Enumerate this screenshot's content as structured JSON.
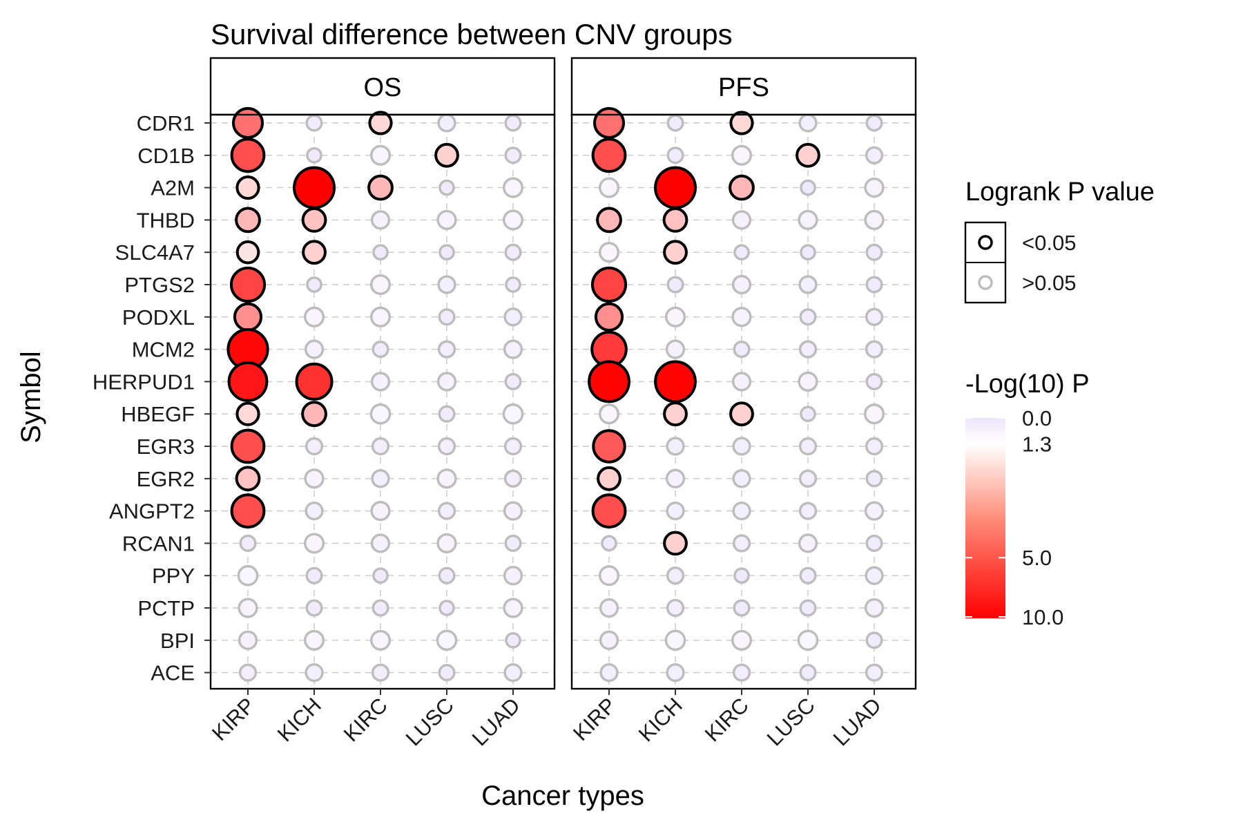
{
  "chart_data": {
    "type": "scatter",
    "title": "Survival difference between CNV groups",
    "xlabel": "Cancer types",
    "ylabel": "Symbol",
    "panels": [
      "OS",
      "PFS"
    ],
    "categories": [
      "KIRP",
      "KICH",
      "KIRC",
      "LUSC",
      "LUAD"
    ],
    "genes": [
      "CDR1",
      "CD1B",
      "A2M",
      "THBD",
      "SLC4A7",
      "PTGS2",
      "PODXL",
      "MCM2",
      "HERPUD1",
      "HBEGF",
      "EGR3",
      "EGR2",
      "ANGPT2",
      "RCAN1",
      "PPY",
      "PCTP",
      "BPI",
      "ACE"
    ],
    "neglog10p": {
      "OS": [
        [
          4.0,
          0.3,
          1.5,
          0.5,
          0.3
        ],
        [
          5.5,
          0.2,
          0.8,
          1.6,
          0.3
        ],
        [
          1.5,
          10.0,
          2.0,
          0.2,
          0.8
        ],
        [
          2.0,
          1.8,
          0.6,
          0.7,
          0.8
        ],
        [
          1.4,
          1.6,
          0.2,
          0.2,
          0.3
        ],
        [
          6.0,
          0.2,
          0.8,
          0.5,
          0.2
        ],
        [
          3.0,
          0.8,
          0.8,
          0.3,
          0.5
        ],
        [
          9.5,
          0.6,
          0.3,
          0.4,
          0.6
        ],
        [
          8.5,
          7.0,
          0.6,
          0.6,
          0.3
        ],
        [
          1.5,
          2.0,
          0.9,
          0.3,
          0.9
        ],
        [
          5.5,
          0.4,
          0.4,
          0.4,
          0.4
        ],
        [
          1.8,
          0.7,
          0.5,
          0.7,
          0.4
        ],
        [
          5.5,
          0.5,
          0.7,
          0.4,
          0.6
        ],
        [
          0.3,
          0.8,
          0.6,
          0.7,
          0.3
        ],
        [
          0.9,
          0.3,
          0.2,
          0.3,
          0.6
        ],
        [
          0.7,
          0.3,
          0.3,
          0.2,
          0.7
        ],
        [
          0.6,
          0.8,
          0.8,
          0.9,
          0.2
        ],
        [
          0.4,
          0.5,
          0.4,
          0.3,
          0.5
        ]
      ],
      "PFS": [
        [
          4.0,
          0.3,
          1.5,
          0.5,
          0.3
        ],
        [
          5.5,
          0.3,
          0.8,
          1.6,
          0.4
        ],
        [
          0.8,
          10.0,
          2.0,
          0.2,
          0.7
        ],
        [
          2.0,
          1.8,
          0.6,
          0.7,
          0.7
        ],
        [
          0.8,
          1.6,
          0.2,
          0.2,
          0.3
        ],
        [
          6.0,
          0.3,
          0.6,
          0.5,
          0.3
        ],
        [
          3.0,
          0.8,
          0.7,
          0.3,
          0.4
        ],
        [
          6.5,
          0.6,
          0.3,
          0.4,
          0.4
        ],
        [
          9.8,
          9.8,
          0.6,
          0.7,
          0.3
        ],
        [
          0.8,
          1.6,
          1.6,
          0.2,
          0.8
        ],
        [
          5.0,
          0.5,
          0.5,
          0.4,
          0.4
        ],
        [
          1.6,
          0.6,
          0.5,
          0.4,
          0.3
        ],
        [
          5.5,
          0.5,
          0.5,
          0.4,
          0.6
        ],
        [
          0.2,
          1.6,
          0.4,
          0.6,
          0.3
        ],
        [
          0.8,
          0.4,
          0.2,
          0.3,
          0.5
        ],
        [
          0.6,
          0.4,
          0.3,
          0.3,
          0.6
        ],
        [
          0.6,
          0.9,
          0.8,
          0.9,
          0.3
        ],
        [
          0.5,
          0.5,
          0.4,
          0.3,
          0.4
        ]
      ]
    },
    "significance_threshold": 1.3,
    "legend": {
      "shape_title": "Logrank P value",
      "shape_items": [
        "<0.05",
        ">0.05"
      ],
      "color_title": "-Log(10) P",
      "color_ticks": [
        "0.0",
        "1.3",
        "5.0",
        "10.0"
      ],
      "color_tick_values": [
        0.0,
        1.3,
        5.0,
        10.0
      ],
      "color_range": [
        0,
        10
      ],
      "colors": {
        "low": "#ece6fb",
        "mid": "#ffffff",
        "high": "#ff0000",
        "sig_stroke": "#000000",
        "nonsig_stroke": "#bdbdbd"
      }
    },
    "grid": true
  }
}
